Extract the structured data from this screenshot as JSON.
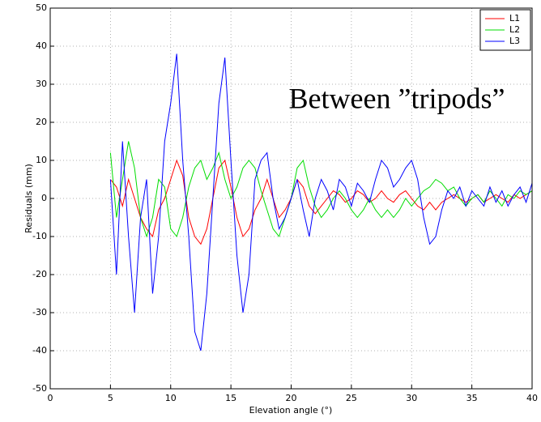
{
  "chart_data": {
    "type": "line",
    "annotation": "Between ”tripods”",
    "xlabel": "Elevation angle (°)",
    "ylabel": "Residuals (mm)",
    "x": [
      5,
      5.5,
      6,
      6.5,
      7,
      7.5,
      8,
      8.5,
      9,
      9.5,
      10,
      10.5,
      11,
      11.5,
      12,
      12.5,
      13,
      13.5,
      14,
      14.5,
      15,
      15.5,
      16,
      16.5,
      17,
      17.5,
      18,
      18.5,
      19,
      19.5,
      20,
      20.5,
      21,
      21.5,
      22,
      22.5,
      23,
      23.5,
      24,
      24.5,
      25,
      25.5,
      26,
      26.5,
      27,
      27.5,
      28,
      28.5,
      29,
      29.5,
      30,
      30.5,
      31,
      31.5,
      32,
      32.5,
      33,
      33.5,
      34,
      34.5,
      35,
      35.5,
      36,
      36.5,
      37,
      37.5,
      38,
      38.5,
      39,
      39.5,
      40
    ],
    "series": [
      {
        "name": "L1",
        "color": "#ff0000",
        "values": [
          5,
          3,
          -2,
          5,
          0,
          -5,
          -8,
          -10,
          -3,
          0,
          5,
          10,
          6,
          -5,
          -10,
          -12,
          -8,
          0,
          8,
          10,
          3,
          -5,
          -10,
          -8,
          -3,
          0,
          5,
          0,
          -5,
          -3,
          0,
          5,
          3,
          -2,
          -4,
          -2,
          0,
          2,
          1,
          -1,
          0,
          2,
          1,
          -1,
          0,
          2,
          0,
          -1,
          1,
          2,
          0,
          -2,
          -3,
          -1,
          -3,
          -1,
          0,
          1,
          0,
          -1,
          0,
          1,
          -1,
          0,
          1,
          0,
          -1,
          1,
          0,
          1,
          2
        ]
      },
      {
        "name": "L2",
        "color": "#00dd00",
        "values": [
          12,
          -5,
          5,
          15,
          8,
          -5,
          -10,
          -5,
          5,
          3,
          -8,
          -10,
          -5,
          3,
          8,
          10,
          5,
          8,
          12,
          5,
          0,
          3,
          8,
          10,
          8,
          2,
          -3,
          -8,
          -10,
          -5,
          0,
          8,
          10,
          3,
          -2,
          -5,
          -3,
          0,
          2,
          0,
          -3,
          -5,
          -3,
          0,
          -3,
          -5,
          -3,
          -5,
          -3,
          0,
          -2,
          0,
          2,
          3,
          5,
          4,
          2,
          3,
          0,
          -2,
          0,
          1,
          -1,
          2,
          0,
          -2,
          1,
          0,
          2,
          1,
          2
        ]
      },
      {
        "name": "L3",
        "color": "#0000ff",
        "values": [
          5,
          -20,
          15,
          -10,
          -30,
          -5,
          5,
          -25,
          -10,
          15,
          25,
          38,
          10,
          -10,
          -35,
          -40,
          -25,
          0,
          25,
          37,
          10,
          -15,
          -30,
          -20,
          5,
          10,
          12,
          0,
          -8,
          -5,
          0,
          5,
          -3,
          -10,
          0,
          5,
          2,
          -3,
          5,
          3,
          -2,
          4,
          2,
          -1,
          5,
          10,
          8,
          3,
          5,
          8,
          10,
          5,
          -5,
          -12,
          -10,
          -3,
          2,
          0,
          3,
          -2,
          2,
          0,
          -2,
          3,
          -1,
          2,
          -2,
          1,
          3,
          -1,
          4
        ]
      }
    ],
    "xlim": [
      0,
      40
    ],
    "xticks": [
      0,
      5,
      10,
      15,
      20,
      25,
      30,
      35,
      40
    ],
    "ylim": [
      -50,
      50
    ],
    "yticks": [
      -50,
      -40,
      -30,
      -20,
      -10,
      0,
      10,
      20,
      30,
      40,
      50
    ],
    "grid": true,
    "legend": "upper right"
  }
}
